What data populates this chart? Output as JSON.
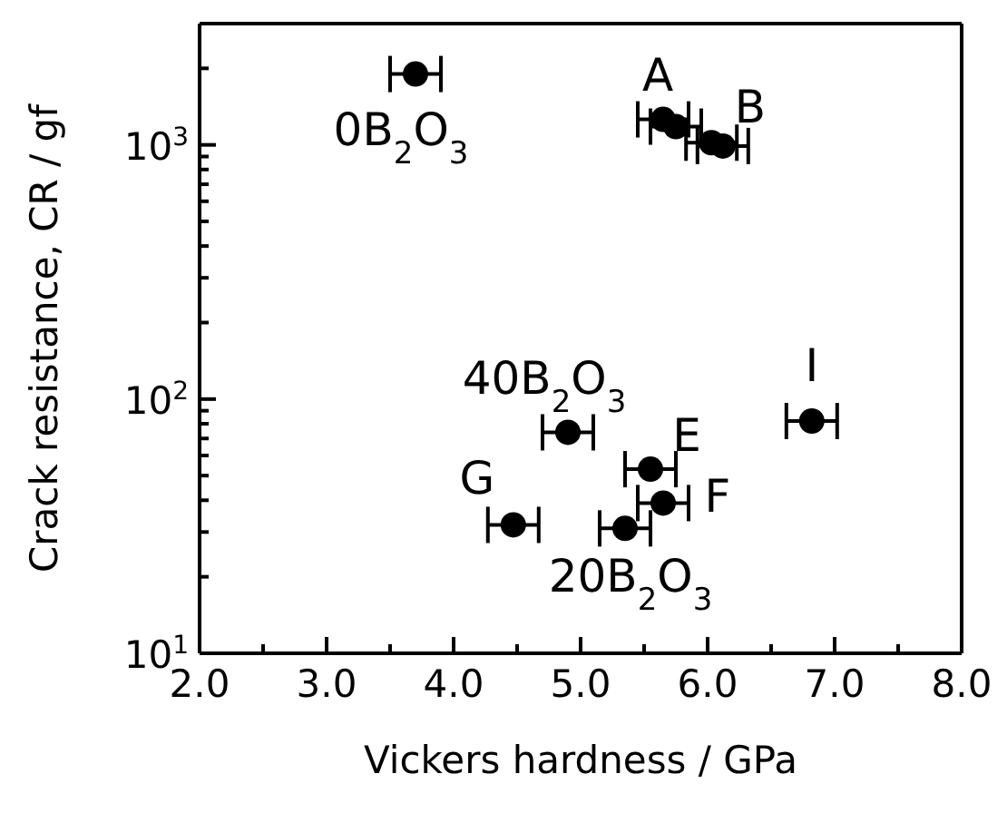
{
  "chart_data": {
    "type": "scatter",
    "xlabel": "Vickers hardness / GPa",
    "ylabel": "Crack resistance, CR / gf",
    "log": "y",
    "legend": false,
    "marker": "circle",
    "x": [
      3.7,
      5.65,
      5.75,
      6.03,
      6.12,
      4.9,
      5.55,
      5.65,
      4.47,
      5.35,
      6.82
    ],
    "series": [
      {
        "color": "#000000",
        "values": [
          1900,
          1260,
          1180,
          1020,
          990,
          74,
          53,
          39,
          32,
          31,
          82
        ],
        "xerrors": [
          0.2,
          0.2,
          0.2,
          0.2,
          0.2,
          0.2,
          0.2,
          0.2,
          0.2,
          0.2,
          0.2
        ]
      }
    ],
    "xlim": [
      2,
      8
    ],
    "xticks": [
      {
        "value": 2,
        "label": "2.0"
      },
      {
        "value": 2.5,
        "label": null
      },
      {
        "value": 3,
        "label": "3.0"
      },
      {
        "value": 3.5,
        "label": null
      },
      {
        "value": 4,
        "label": "4.0"
      },
      {
        "value": 4.5,
        "label": null
      },
      {
        "value": 5,
        "label": "5.0"
      },
      {
        "value": 5.5,
        "label": null
      },
      {
        "value": 6,
        "label": "6.0"
      },
      {
        "value": 6.5,
        "label": null
      },
      {
        "value": 7,
        "label": "7.0"
      },
      {
        "value": 7.5,
        "label": null
      },
      {
        "value": 8,
        "label": "8.0"
      }
    ],
    "ylim": [
      10,
      3000
    ],
    "yticks": [
      {
        "value": 10,
        "label": "10$^{1}$"
      },
      {
        "value": 20,
        "label": null
      },
      {
        "value": 30,
        "label": null
      },
      {
        "value": 40,
        "label": null
      },
      {
        "value": 50,
        "label": null
      },
      {
        "value": 60,
        "label": null
      },
      {
        "value": 70,
        "label": null
      },
      {
        "value": 80,
        "label": null
      },
      {
        "value": 90,
        "label": null
      },
      {
        "value": 100,
        "label": "10$^{2}$"
      },
      {
        "value": 200,
        "label": null
      },
      {
        "value": 300,
        "label": null
      },
      {
        "value": 400,
        "label": null
      },
      {
        "value": 500,
        "label": null
      },
      {
        "value": 600,
        "label": null
      },
      {
        "value": 700,
        "label": null
      },
      {
        "value": 800,
        "label": null
      },
      {
        "value": 900,
        "label": null
      },
      {
        "value": 1000,
        "label": "10$^{3}$"
      },
      {
        "value": 2000,
        "label": null
      }
    ],
    "annotations": [
      {
        "text": "0B$_{2}$O$_{3}$",
        "x": 3.7,
        "y": 1900
      },
      {
        "text": "A",
        "x": 5.65,
        "y": 1260
      },
      {
        "text": "B",
        "x": 6.12,
        "y": 990
      },
      {
        "text": "40B$_{2}$O$_{3}$",
        "x": 4.9,
        "y": 74
      },
      {
        "text": "E",
        "x": 5.55,
        "y": 53
      },
      {
        "text": "F",
        "x": 5.65,
        "y": 39
      },
      {
        "text": "G",
        "x": 4.47,
        "y": 32
      },
      {
        "text": "20B$_{2}$O$_{3}$",
        "x": 5.35,
        "y": 31
      },
      {
        "text": "I",
        "x": 6.82,
        "y": 82
      }
    ]
  }
}
